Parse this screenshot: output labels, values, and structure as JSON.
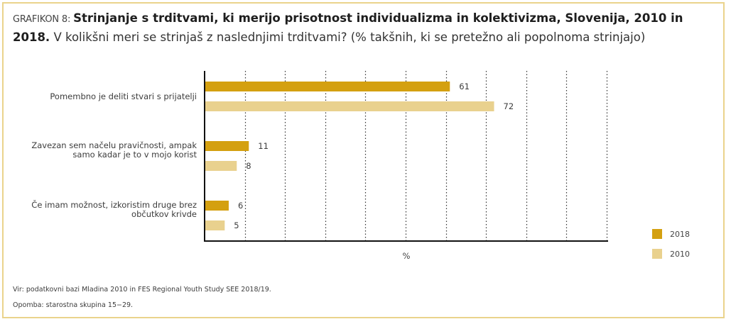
{
  "title": {
    "prefix": "GRAFIKON 8: ",
    "bold": "Strinjanje s trditvami, ki merijo prisotnost individualizma in kolektivizma, Slovenija, 2010 in 2018.",
    "rest": " V kolikšni meri se strinjaš z naslednjimi trditvami? (% takšnih, ki se pretežno ali popolnoma strinjajo)"
  },
  "colors": {
    "series_2018": "#d4a010",
    "series_2010": "#e9d18e",
    "frame": "#ead38c",
    "axis": "#111111",
    "grid": "#333333"
  },
  "chart_data": {
    "type": "bar",
    "orientation": "horizontal",
    "title": "Strinjanje s trditvami, ki merijo prisotnost individualizma in kolektivizma, Slovenija, 2010 in 2018.",
    "xlabel": "%",
    "ylabel": "",
    "xlim": [
      0,
      100
    ],
    "grid": true,
    "grid_step": 10,
    "legend_position": "bottom-right",
    "categories": [
      "Pomembno je deliti stvari s prijatelji",
      "Zavezan sem načelu pravičnosti, ampak samo kadar je to v mojo korist",
      "Če imam možnost, izkoristim druge brez občutkov krivde"
    ],
    "category_lines": [
      [
        "Pomembno je deliti stvari s prijatelji"
      ],
      [
        "Zavezan sem načelu pravičnosti, ampak",
        "samo kadar je to v mojo korist"
      ],
      [
        "Če imam možnost, izkoristim druge brez",
        "občutkov krivde"
      ]
    ],
    "series": [
      {
        "name": "2018",
        "values": [
          61,
          11,
          6
        ]
      },
      {
        "name": "2010",
        "values": [
          72,
          8,
          5
        ]
      }
    ]
  },
  "footer": {
    "source": "Vir: podatkovni bazi Mladina 2010 in FES Regional Youth Study SEE 2018/19.",
    "note": "Opomba: starostna skupina 15−29."
  }
}
